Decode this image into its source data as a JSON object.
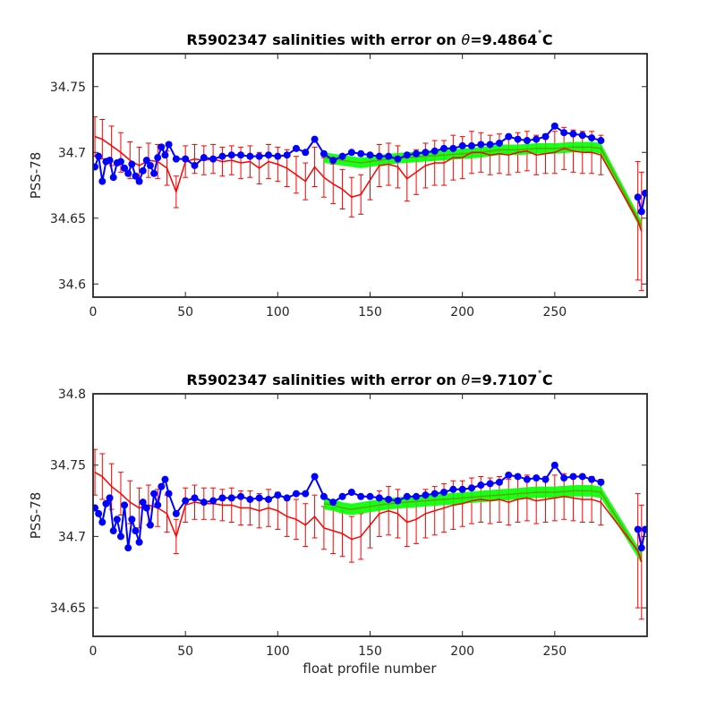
{
  "figure": {
    "background": "#ffffff"
  },
  "colors": {
    "red": "#ff0000",
    "green": "#00ff00",
    "blue": "#0000ff",
    "olive": "#808000",
    "axis": "#262626"
  },
  "chart_data": [
    {
      "type": "line",
      "title": "R5902347 salinities with error on θ=9.4864°C",
      "title_prefix": "R5902347 salinities with error on ",
      "title_theta": "θ",
      "title_value": "=9.4864",
      "title_unit": "C",
      "ylabel": "PSS-78",
      "xlabel": "",
      "xlim": [
        0,
        300
      ],
      "ylim": [
        34.59,
        34.775
      ],
      "xticks": [
        0,
        50,
        100,
        150,
        200,
        250
      ],
      "yticks": [
        34.6,
        34.65,
        34.7,
        34.75
      ],
      "xtick_labels": [
        "0",
        "50",
        "100",
        "150",
        "200",
        "250"
      ],
      "ytick_labels": [
        "34.6",
        "34.65",
        "34.7",
        "34.75"
      ],
      "grid": false,
      "series": [
        {
          "role": "float-salinity",
          "color": "blue",
          "markers": true,
          "x": [
            1,
            3,
            5,
            7,
            9,
            11,
            13,
            15,
            17,
            19,
            21,
            23,
            25,
            27,
            29,
            31,
            33,
            35,
            37,
            39,
            41,
            45,
            50,
            55,
            60,
            65,
            70,
            75,
            80,
            85,
            90,
            95,
            100,
            105,
            110,
            115,
            120,
            125,
            130,
            135,
            140,
            145,
            150,
            155,
            160,
            165,
            170,
            175,
            180,
            185,
            190,
            195,
            200,
            205,
            210,
            215,
            220,
            225,
            230,
            235,
            240,
            245,
            250,
            255,
            260,
            265,
            270,
            275,
            295,
            297,
            299
          ],
          "y": [
            34.689,
            34.697,
            34.678,
            34.693,
            34.694,
            34.681,
            34.692,
            34.693,
            34.688,
            34.684,
            34.691,
            34.682,
            34.678,
            34.686,
            34.694,
            34.69,
            34.684,
            34.696,
            34.704,
            34.698,
            34.706,
            34.695,
            34.695,
            34.69,
            34.696,
            34.695,
            34.697,
            34.698,
            34.698,
            34.697,
            34.697,
            34.698,
            34.697,
            34.698,
            34.703,
            34.7,
            34.71,
            34.699,
            34.694,
            34.697,
            34.7,
            34.699,
            34.698,
            34.697,
            34.697,
            34.695,
            34.698,
            34.699,
            34.7,
            34.701,
            34.703,
            34.703,
            34.705,
            34.705,
            34.706,
            34.706,
            34.707,
            34.712,
            34.71,
            34.709,
            34.71,
            34.712,
            34.72,
            34.715,
            34.714,
            34.713,
            34.711,
            34.709,
            34.666,
            34.655,
            34.669
          ]
        },
        {
          "role": "mapped-salinity-mean",
          "color": "red",
          "markers": false,
          "error_bars": true,
          "x": [
            1,
            5,
            10,
            15,
            20,
            25,
            30,
            35,
            40,
            45,
            50,
            55,
            60,
            65,
            70,
            75,
            80,
            85,
            90,
            95,
            100,
            105,
            110,
            115,
            120,
            125,
            130,
            135,
            140,
            145,
            150,
            155,
            160,
            165,
            170,
            175,
            180,
            185,
            190,
            195,
            200,
            205,
            210,
            215,
            220,
            225,
            230,
            235,
            240,
            245,
            250,
            255,
            260,
            265,
            270,
            275,
            295,
            297
          ],
          "y": [
            34.712,
            34.71,
            34.705,
            34.7,
            34.694,
            34.69,
            34.694,
            34.693,
            34.688,
            34.67,
            34.693,
            34.695,
            34.694,
            34.695,
            34.693,
            34.694,
            34.692,
            34.693,
            34.688,
            34.693,
            34.691,
            34.688,
            34.683,
            34.678,
            34.689,
            34.681,
            34.676,
            34.672,
            34.666,
            34.668,
            34.679,
            34.69,
            34.691,
            34.689,
            34.68,
            34.685,
            34.69,
            34.692,
            34.692,
            34.696,
            34.696,
            34.7,
            34.7,
            34.698,
            34.699,
            34.698,
            34.7,
            34.701,
            34.698,
            34.699,
            34.7,
            34.703,
            34.701,
            34.7,
            34.7,
            34.698,
            34.648,
            34.64
          ],
          "err": [
            0.015,
            0.015,
            0.015,
            0.015,
            0.014,
            0.014,
            0.013,
            0.013,
            0.013,
            0.012,
            0.012,
            0.011,
            0.011,
            0.011,
            0.011,
            0.011,
            0.012,
            0.012,
            0.012,
            0.013,
            0.013,
            0.014,
            0.014,
            0.014,
            0.015,
            0.015,
            0.015,
            0.015,
            0.015,
            0.015,
            0.015,
            0.016,
            0.016,
            0.016,
            0.017,
            0.017,
            0.017,
            0.017,
            0.017,
            0.017,
            0.016,
            0.016,
            0.015,
            0.015,
            0.015,
            0.015,
            0.015,
            0.015,
            0.015,
            0.015,
            0.016,
            0.016,
            0.016,
            0.016,
            0.016,
            0.015,
            0.045,
            0.045
          ]
        },
        {
          "role": "calibrated-salinity",
          "color": "green",
          "markers": false,
          "x": [
            125,
            130,
            135,
            140,
            145,
            150,
            155,
            160,
            170,
            180,
            190,
            200,
            210,
            220,
            230,
            240,
            250,
            260,
            270,
            275,
            297
          ],
          "y": [
            34.696,
            34.695,
            34.694,
            34.693,
            34.692,
            34.693,
            34.694,
            34.695,
            34.696,
            34.697,
            34.698,
            34.699,
            34.7,
            34.702,
            34.702,
            34.703,
            34.703,
            34.704,
            34.704,
            34.703,
            34.644
          ],
          "band": 0.004
        }
      ]
    },
    {
      "type": "line",
      "title": "R5902347 salinities with error on θ=9.7107°C",
      "title_prefix": "R5902347 salinities with error on ",
      "title_theta": "θ",
      "title_value": "=9.7107",
      "title_unit": "C",
      "ylabel": "PSS-78",
      "xlabel": "float profile number",
      "xlim": [
        0,
        300
      ],
      "ylim": [
        34.63,
        34.8
      ],
      "xticks": [
        0,
        50,
        100,
        150,
        200,
        250
      ],
      "yticks": [
        34.65,
        34.7,
        34.75,
        34.8
      ],
      "xtick_labels": [
        "0",
        "50",
        "100",
        "150",
        "200",
        "250"
      ],
      "ytick_labels": [
        "34.65",
        "34.7",
        "34.75",
        "34.8"
      ],
      "grid": false,
      "series": [
        {
          "role": "float-salinity",
          "color": "blue",
          "markers": true,
          "x": [
            1,
            3,
            5,
            7,
            9,
            11,
            13,
            15,
            17,
            19,
            21,
            23,
            25,
            27,
            29,
            31,
            33,
            35,
            37,
            39,
            41,
            45,
            50,
            55,
            60,
            65,
            70,
            75,
            80,
            85,
            90,
            95,
            100,
            105,
            110,
            115,
            120,
            125,
            130,
            135,
            140,
            145,
            150,
            155,
            160,
            165,
            170,
            175,
            180,
            185,
            190,
            195,
            200,
            205,
            210,
            215,
            220,
            225,
            230,
            235,
            240,
            245,
            250,
            255,
            260,
            265,
            270,
            275,
            295,
            297,
            299
          ],
          "y": [
            34.72,
            34.716,
            34.71,
            34.723,
            34.727,
            34.704,
            34.712,
            34.7,
            34.722,
            34.692,
            34.712,
            34.704,
            34.696,
            34.724,
            34.72,
            34.708,
            34.73,
            34.722,
            34.735,
            34.74,
            34.73,
            34.716,
            34.725,
            34.727,
            34.724,
            34.725,
            34.727,
            34.727,
            34.728,
            34.726,
            34.727,
            34.726,
            34.729,
            34.727,
            34.73,
            34.73,
            34.742,
            34.728,
            34.724,
            34.728,
            34.731,
            34.728,
            34.728,
            34.727,
            34.726,
            34.725,
            34.728,
            34.728,
            34.729,
            34.73,
            34.731,
            34.733,
            34.733,
            34.734,
            34.736,
            34.737,
            34.738,
            34.743,
            34.742,
            34.74,
            34.741,
            34.74,
            34.75,
            34.741,
            34.742,
            34.742,
            34.74,
            34.738,
            34.705,
            34.692,
            34.705
          ]
        },
        {
          "role": "mapped-salinity-mean",
          "color": "red",
          "markers": false,
          "error_bars": true,
          "x": [
            1,
            5,
            10,
            15,
            20,
            25,
            30,
            35,
            40,
            45,
            50,
            55,
            60,
            65,
            70,
            75,
            80,
            85,
            90,
            95,
            100,
            105,
            110,
            115,
            120,
            125,
            130,
            135,
            140,
            145,
            150,
            155,
            160,
            165,
            170,
            175,
            180,
            185,
            190,
            195,
            200,
            205,
            210,
            215,
            220,
            225,
            230,
            235,
            240,
            245,
            250,
            255,
            260,
            265,
            270,
            275,
            295,
            297
          ],
          "y": [
            34.745,
            34.742,
            34.735,
            34.73,
            34.724,
            34.72,
            34.722,
            34.72,
            34.716,
            34.7,
            34.722,
            34.724,
            34.723,
            34.723,
            34.722,
            34.722,
            34.72,
            34.72,
            34.718,
            34.72,
            34.718,
            34.714,
            34.712,
            34.708,
            34.714,
            34.706,
            34.704,
            34.702,
            34.698,
            34.7,
            34.708,
            34.716,
            34.718,
            34.716,
            34.71,
            34.712,
            34.716,
            34.718,
            34.72,
            34.722,
            34.723,
            34.725,
            34.726,
            34.725,
            34.726,
            34.724,
            34.726,
            34.727,
            34.725,
            34.726,
            34.727,
            34.728,
            34.727,
            34.726,
            34.726,
            34.724,
            34.69,
            34.682
          ],
          "err": [
            0.016,
            0.016,
            0.016,
            0.015,
            0.015,
            0.014,
            0.014,
            0.013,
            0.013,
            0.012,
            0.012,
            0.012,
            0.011,
            0.011,
            0.011,
            0.012,
            0.012,
            0.012,
            0.012,
            0.013,
            0.013,
            0.014,
            0.014,
            0.015,
            0.015,
            0.015,
            0.016,
            0.016,
            0.016,
            0.016,
            0.016,
            0.016,
            0.017,
            0.017,
            0.017,
            0.017,
            0.017,
            0.017,
            0.017,
            0.017,
            0.016,
            0.016,
            0.016,
            0.016,
            0.016,
            0.016,
            0.016,
            0.016,
            0.016,
            0.016,
            0.016,
            0.016,
            0.016,
            0.016,
            0.016,
            0.016,
            0.04,
            0.04
          ]
        },
        {
          "role": "calibrated-salinity",
          "color": "green",
          "markers": false,
          "x": [
            125,
            130,
            135,
            140,
            145,
            150,
            155,
            160,
            170,
            180,
            190,
            200,
            210,
            220,
            230,
            240,
            250,
            260,
            270,
            275,
            297
          ],
          "y": [
            34.723,
            34.722,
            34.72,
            34.719,
            34.72,
            34.721,
            34.722,
            34.723,
            34.724,
            34.725,
            34.726,
            34.727,
            34.728,
            34.729,
            34.73,
            34.731,
            34.731,
            34.732,
            34.732,
            34.731,
            34.685
          ],
          "band": 0.004
        }
      ]
    }
  ]
}
